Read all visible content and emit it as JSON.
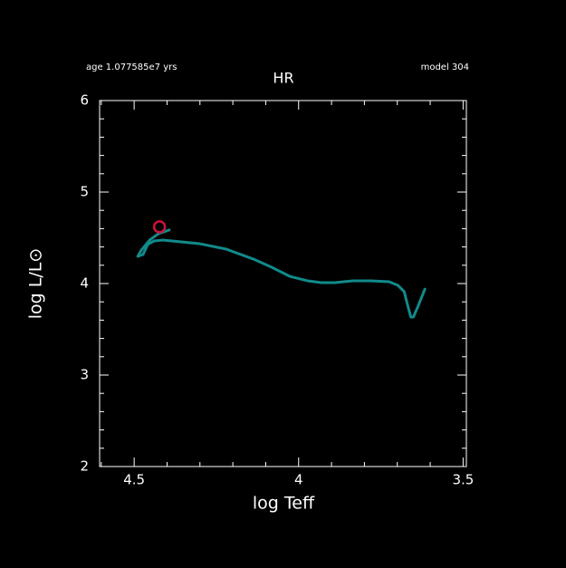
{
  "chart_data": {
    "type": "line",
    "title": "HR",
    "subtitle_left": "age 1.077585e7 yrs",
    "subtitle_right": "model 304",
    "x_label": "log Teff",
    "y_label": "log L/L⊙",
    "xlim": [
      4.605,
      3.49
    ],
    "ylim": [
      2,
      6
    ],
    "xticks": [
      4.5,
      4,
      3.5
    ],
    "xminorticks": [
      4.6,
      4.4,
      4.3,
      4.2,
      4.1,
      3.9,
      3.8,
      3.7,
      3.6
    ],
    "yticks": [
      2,
      3,
      4,
      5,
      6
    ],
    "yminorticks": [
      2.2,
      2.4,
      2.6,
      2.8,
      3.2,
      3.4,
      3.6,
      3.8,
      4.2,
      4.4,
      4.6,
      4.8,
      5.2,
      5.4,
      5.6,
      5.8
    ],
    "series": [
      {
        "color": "#128a8a",
        "x": [
          4.39,
          4.426,
          4.453,
          4.478,
          4.489,
          4.473,
          4.459,
          4.44,
          4.412,
          4.357,
          4.302,
          4.22,
          4.137,
          4.082,
          4.027,
          3.973,
          3.931,
          3.89,
          3.835,
          3.78,
          3.725,
          3.698,
          3.679,
          3.67,
          3.659,
          3.651,
          3.637,
          3.626,
          3.615
        ],
        "values": [
          4.59,
          4.545,
          4.475,
          4.366,
          4.297,
          4.317,
          4.426,
          4.465,
          4.475,
          4.455,
          4.436,
          4.376,
          4.267,
          4.178,
          4.079,
          4.03,
          4.01,
          4.01,
          4.03,
          4.03,
          4.02,
          3.98,
          3.911,
          3.782,
          3.634,
          3.634,
          3.752,
          3.851,
          3.95
        ]
      }
    ],
    "marker": {
      "x": 4.423,
      "y": 4.62,
      "color": "#d0103a"
    }
  }
}
